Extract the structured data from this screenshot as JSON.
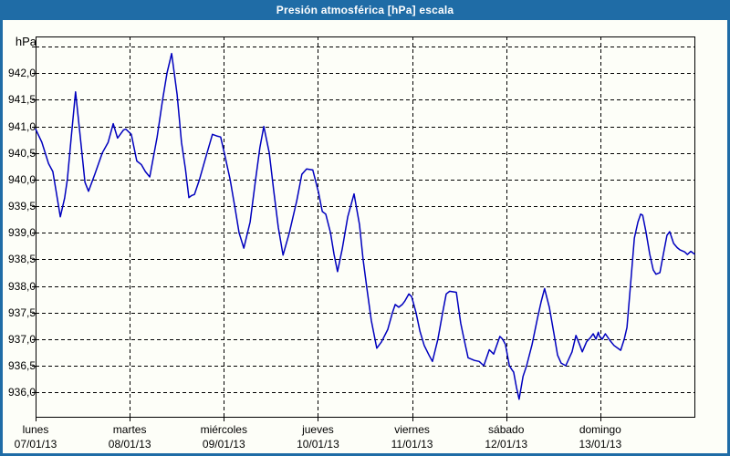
{
  "window": {
    "title": "Presión atmosférica [hPa] escala"
  },
  "colors": {
    "frame_blue": "#1F6CA6",
    "background": "#FDFEF8",
    "line_blue": "#0000BE",
    "grid_black": "#000000",
    "title_text": "#FFFFFF",
    "label_text": "#000000"
  },
  "chart_data": {
    "type": "line",
    "title": "Presión atmosférica [hPa] escala",
    "ylabel": "hPa",
    "xlabel": "",
    "grid": "dashed",
    "legend": "none",
    "ylim": [
      935.54,
      942.69
    ],
    "xlim_hours": [
      0,
      168
    ],
    "ygrid_unlabeled": [
      942.5
    ],
    "yticks": [
      {
        "value": 942.0,
        "label": "942,0"
      },
      {
        "value": 941.5,
        "label": "941,5"
      },
      {
        "value": 941.0,
        "label": "941,0"
      },
      {
        "value": 940.5,
        "label": "940,5"
      },
      {
        "value": 940.0,
        "label": "940,0"
      },
      {
        "value": 939.5,
        "label": "939,5"
      },
      {
        "value": 939.0,
        "label": "939,0"
      },
      {
        "value": 938.5,
        "label": "938,5"
      },
      {
        "value": 938.0,
        "label": "938,0"
      },
      {
        "value": 937.5,
        "label": "937,5"
      },
      {
        "value": 937.0,
        "label": "937,0"
      },
      {
        "value": 936.5,
        "label": "936,5"
      },
      {
        "value": 936.0,
        "label": "936,0"
      }
    ],
    "xticks": [
      {
        "hours": 0,
        "day": "lunes",
        "date": "07/01/13"
      },
      {
        "hours": 24,
        "day": "martes",
        "date": "08/01/13"
      },
      {
        "hours": 48,
        "day": "miércoles",
        "date": "09/01/13"
      },
      {
        "hours": 72,
        "day": "jueves",
        "date": "10/01/13"
      },
      {
        "hours": 96,
        "day": "viernes",
        "date": "11/01/13"
      },
      {
        "hours": 120,
        "day": "sábado",
        "date": "12/01/13"
      },
      {
        "hours": 144,
        "day": "domingo",
        "date": "13/01/13"
      }
    ],
    "series": [
      {
        "name": "Presión atmosférica [hPa]",
        "color": "#0000BE",
        "points": [
          [
            0,
            940.95
          ],
          [
            1.6,
            940.7
          ],
          [
            3.3,
            940.3
          ],
          [
            4.4,
            940.15
          ],
          [
            5.2,
            939.8
          ],
          [
            6.3,
            939.3
          ],
          [
            7.4,
            939.65
          ],
          [
            8.1,
            940.0
          ],
          [
            9.1,
            940.8
          ],
          [
            10.2,
            941.65
          ],
          [
            11.6,
            940.65
          ],
          [
            12.6,
            939.95
          ],
          [
            13.5,
            939.78
          ],
          [
            15.1,
            940.1
          ],
          [
            17.0,
            940.5
          ],
          [
            18.5,
            940.7
          ],
          [
            19.8,
            941.05
          ],
          [
            20.9,
            940.78
          ],
          [
            22.4,
            940.93
          ],
          [
            23.0,
            940.95
          ],
          [
            24.4,
            940.85
          ],
          [
            25.8,
            940.35
          ],
          [
            27.0,
            940.28
          ],
          [
            28.0,
            940.15
          ],
          [
            29.1,
            940.05
          ],
          [
            31.0,
            940.8
          ],
          [
            32.4,
            941.5
          ],
          [
            33.5,
            942.0
          ],
          [
            34.7,
            942.37
          ],
          [
            36.1,
            941.6
          ],
          [
            37.2,
            940.7
          ],
          [
            38.2,
            940.2
          ],
          [
            39.1,
            939.66
          ],
          [
            39.8,
            939.7
          ],
          [
            40.5,
            939.72
          ],
          [
            41.8,
            940.0
          ],
          [
            43.1,
            940.34
          ],
          [
            45.1,
            940.85
          ],
          [
            46.2,
            940.82
          ],
          [
            47.2,
            940.8
          ],
          [
            48.2,
            940.48
          ],
          [
            49.6,
            940.0
          ],
          [
            51.0,
            939.4
          ],
          [
            51.9,
            939.0
          ],
          [
            53.1,
            938.71
          ],
          [
            54.7,
            939.2
          ],
          [
            56.1,
            940.0
          ],
          [
            57.2,
            940.6
          ],
          [
            58.2,
            941.0
          ],
          [
            59.6,
            940.5
          ],
          [
            60.7,
            939.8
          ],
          [
            61.9,
            939.1
          ],
          [
            63.1,
            938.58
          ],
          [
            64.7,
            939.0
          ],
          [
            66.6,
            939.6
          ],
          [
            67.9,
            940.1
          ],
          [
            69.1,
            940.2
          ],
          [
            70.7,
            940.18
          ],
          [
            72.1,
            939.77
          ],
          [
            73.1,
            939.4
          ],
          [
            74.0,
            939.35
          ],
          [
            75.2,
            939.0
          ],
          [
            76.1,
            938.6
          ],
          [
            77.0,
            938.27
          ],
          [
            78.2,
            938.7
          ],
          [
            79.6,
            939.3
          ],
          [
            81.2,
            939.73
          ],
          [
            82.6,
            939.15
          ],
          [
            83.5,
            938.5
          ],
          [
            84.5,
            937.95
          ],
          [
            85.6,
            937.35
          ],
          [
            87.0,
            936.83
          ],
          [
            88.2,
            936.95
          ],
          [
            89.8,
            937.18
          ],
          [
            91.0,
            937.5
          ],
          [
            91.7,
            937.65
          ],
          [
            92.6,
            937.6
          ],
          [
            93.5,
            937.65
          ],
          [
            94.2,
            937.72
          ],
          [
            95.2,
            937.85
          ],
          [
            95.9,
            937.8
          ],
          [
            97.0,
            937.5
          ],
          [
            98.0,
            937.15
          ],
          [
            99.1,
            936.88
          ],
          [
            100.3,
            936.7
          ],
          [
            101.2,
            936.58
          ],
          [
            102.6,
            937.0
          ],
          [
            103.8,
            937.5
          ],
          [
            104.7,
            937.85
          ],
          [
            105.6,
            937.9
          ],
          [
            107.3,
            937.88
          ],
          [
            108.4,
            937.3
          ],
          [
            109.1,
            937.05
          ],
          [
            110.3,
            936.65
          ],
          [
            111.9,
            936.6
          ],
          [
            113.1,
            936.58
          ],
          [
            114.3,
            936.5
          ],
          [
            115.7,
            936.8
          ],
          [
            116.8,
            936.72
          ],
          [
            118.4,
            937.05
          ],
          [
            119.1,
            937.0
          ],
          [
            119.8,
            936.9
          ],
          [
            120.8,
            936.5
          ],
          [
            121.5,
            936.42
          ],
          [
            121.9,
            936.38
          ],
          [
            122.6,
            936.1
          ],
          [
            123.3,
            935.87
          ],
          [
            124.3,
            936.3
          ],
          [
            125.2,
            936.5
          ],
          [
            126.6,
            936.9
          ],
          [
            128.0,
            937.4
          ],
          [
            128.9,
            937.7
          ],
          [
            129.8,
            937.95
          ],
          [
            131.0,
            937.6
          ],
          [
            132.2,
            937.1
          ],
          [
            133.1,
            936.7
          ],
          [
            134.0,
            936.55
          ],
          [
            135.2,
            936.5
          ],
          [
            136.8,
            936.76
          ],
          [
            137.8,
            937.07
          ],
          [
            138.7,
            936.9
          ],
          [
            139.4,
            936.76
          ],
          [
            140.5,
            936.95
          ],
          [
            141.5,
            937.03
          ],
          [
            142.2,
            937.1
          ],
          [
            142.9,
            937.0
          ],
          [
            143.5,
            937.13
          ],
          [
            143.8,
            937.05
          ],
          [
            144.5,
            937.0
          ],
          [
            145.3,
            937.1
          ],
          [
            146.4,
            936.98
          ],
          [
            147.5,
            936.88
          ],
          [
            149.2,
            936.79
          ],
          [
            150.1,
            937.0
          ],
          [
            150.8,
            937.22
          ],
          [
            151.7,
            938.0
          ],
          [
            152.7,
            938.9
          ],
          [
            153.6,
            939.2
          ],
          [
            154.3,
            939.35
          ],
          [
            154.8,
            939.33
          ],
          [
            155.7,
            939.0
          ],
          [
            156.6,
            938.6
          ],
          [
            157.5,
            938.3
          ],
          [
            158.2,
            938.22
          ],
          [
            159.2,
            938.25
          ],
          [
            160.1,
            938.6
          ],
          [
            161.0,
            938.95
          ],
          [
            161.7,
            939.02
          ],
          [
            162.7,
            938.8
          ],
          [
            163.6,
            938.72
          ],
          [
            164.3,
            938.68
          ],
          [
            165.5,
            938.64
          ],
          [
            166.2,
            938.59
          ],
          [
            167.1,
            938.65
          ],
          [
            168,
            938.6
          ]
        ]
      }
    ]
  }
}
